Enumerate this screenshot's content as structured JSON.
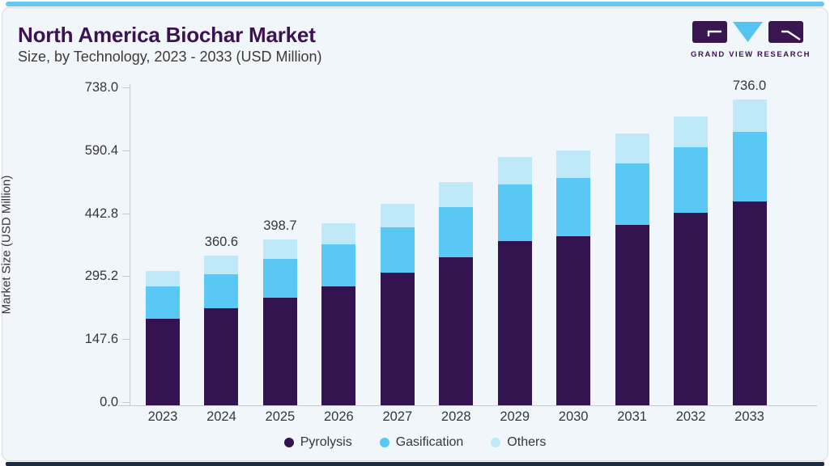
{
  "header": {
    "title": "North America Biochar Market",
    "subtitle": "Size, by Technology, 2023 - 2033 (USD Million)"
  },
  "logo": {
    "name": "GRAND VIEW RESEARCH"
  },
  "chart_data": {
    "type": "bar",
    "stacked": true,
    "title": "North America Biochar Market Size, by Technology, 2023 - 2033 (USD Million)",
    "ylabel": "Market Size (USD Million)",
    "xlabel": "",
    "ylim": [
      0,
      738
    ],
    "yticks": [
      0,
      147.6,
      295.2,
      442.8,
      590.4,
      738
    ],
    "grid": false,
    "legend_position": "bottom",
    "categories": [
      "2023",
      "2024",
      "2025",
      "2026",
      "2027",
      "2028",
      "2029",
      "2030",
      "2031",
      "2032",
      "2033"
    ],
    "series": [
      {
        "name": "Pyrolysis",
        "color": "#331450",
        "values": [
          209.2,
          234.0,
          260.0,
          286.5,
          319.0,
          356.3,
          396.4,
          408.0,
          435.4,
          464.7,
          492.0
        ]
      },
      {
        "name": "Gasification",
        "color": "#5ac8f5",
        "values": [
          76.9,
          81.3,
          93.0,
          100.5,
          109.5,
          120.9,
          135.4,
          138.9,
          147.1,
          157.9,
          167.7
        ]
      },
      {
        "name": "Others",
        "color": "#bfe8f9",
        "values": [
          37.0,
          45.3,
          45.7,
          51.0,
          57.0,
          61.2,
          67.4,
          67.0,
          72.1,
          73.0,
          76.3
        ]
      }
    ],
    "totals": [
      323.1,
      360.6,
      398.7,
      438.0,
      485.5,
      538.4,
      599.2,
      613.9,
      654.6,
      695.6,
      736.0
    ],
    "data_labels": [
      "",
      "360.6",
      "398.7",
      "",
      "",
      "",
      "",
      "",
      "",
      "",
      "736.0"
    ]
  },
  "colors": {
    "accent_top": "#66c9f1",
    "accent_bottom": "#1c2b47",
    "title_purple": "#3d1254",
    "card_bg": "#f1f6fa",
    "axis_gray": "#c4cad1",
    "text_gray": "#35373c",
    "logo_purple": "#3a1650",
    "logo_cyan": "#54c5f0"
  }
}
